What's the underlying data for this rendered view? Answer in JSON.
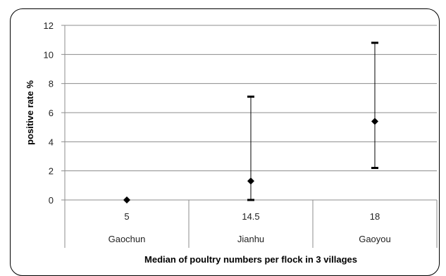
{
  "chart_data": {
    "type": "scatter",
    "title": "",
    "xlabel": "Median of poultry numbers per flock in 3 villages",
    "ylabel": "positive rate %",
    "ylim": [
      0,
      12
    ],
    "yticks": [
      0,
      2,
      4,
      6,
      8,
      10,
      12
    ],
    "grid": true,
    "categories": [
      {
        "median": "5",
        "village": "Gaochun"
      },
      {
        "median": "14.5",
        "village": "Jianhu"
      },
      {
        "median": "18",
        "village": "Gaoyou"
      }
    ],
    "series": [
      {
        "marker": "diamond",
        "color": "#000000",
        "values": [
          0,
          1.3,
          5.4
        ],
        "lower": [
          0,
          0,
          2.2
        ],
        "upper": [
          0,
          7.1,
          10.8
        ]
      }
    ]
  }
}
